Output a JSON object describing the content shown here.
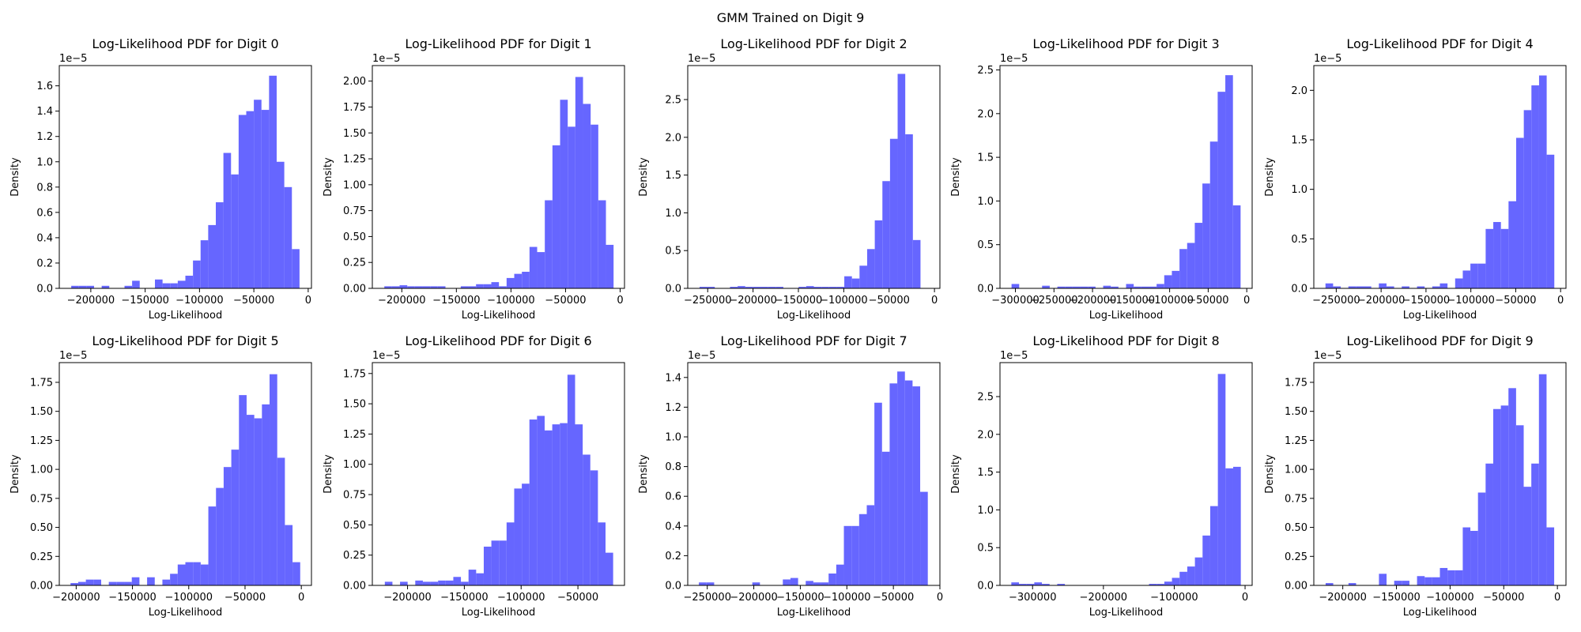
{
  "title": "GMM Trained on Digit 9",
  "chart_data": [
    {
      "type": "histogram",
      "title": "Log-Likelihood PDF for Digit 0",
      "xlabel": "Log-Likelihood",
      "ylabel": "Density",
      "y_offset_label": "1e−5",
      "color": "#6666ff",
      "bins": [
        -218000,
        -211000,
        -204000,
        -197000,
        -190000,
        -183000,
        -176000,
        -169000,
        -162000,
        -155000,
        -148000,
        -141000,
        -134000,
        -127000,
        -120000,
        -113000,
        -106000,
        -99000,
        -92000,
        -85000,
        -78000,
        -71000,
        -64000,
        -57000,
        -50000,
        -43000,
        -36000,
        -29000,
        -22000,
        -15000,
        -8000
      ],
      "values": [
        0.02,
        0.02,
        0.02,
        0,
        0.02,
        0,
        0,
        0.02,
        0.06,
        0,
        0,
        0.07,
        0.04,
        0.04,
        0.06,
        0.1,
        0.22,
        0.38,
        0.5,
        0.68,
        1.07,
        0.9,
        1.37,
        1.4,
        1.49,
        1.41,
        1.68,
        1.0,
        0.8,
        0.31
      ],
      "xlim": [
        -229000,
        3000
      ],
      "ylim": [
        0,
        1.76
      ],
      "xticks": [
        {
          "value": -200000,
          "label": "−200000"
        },
        {
          "value": -150000,
          "label": "−150000"
        },
        {
          "value": -100000,
          "label": "−100000"
        },
        {
          "value": -50000,
          "label": "−50000"
        },
        0
      ],
      "yticks": [
        {
          "value": 0,
          "label": "0.0"
        },
        0.2,
        0.4,
        0.6,
        0.8,
        {
          "value": 1,
          "label": "1.0"
        },
        1.2,
        1.4,
        1.6
      ]
    },
    {
      "type": "histogram",
      "title": "Log-Likelihood PDF for Digit 1",
      "xlabel": "Log-Likelihood",
      "ylabel": "Density",
      "y_offset_label": "1e−5",
      "color": "#6666ff",
      "bins": [
        -216000,
        -209000,
        -202000,
        -195000,
        -188000,
        -181000,
        -174000,
        -167000,
        -160000,
        -153000,
        -146000,
        -139000,
        -132000,
        -125000,
        -118000,
        -111000,
        -104000,
        -97000,
        -90000,
        -83000,
        -76000,
        -69000,
        -62000,
        -55000,
        -48000,
        -41000,
        -34000,
        -27000,
        -20000,
        -13000,
        -6000
      ],
      "values": [
        0.02,
        0.02,
        0.03,
        0.02,
        0.02,
        0.02,
        0.02,
        0.02,
        0,
        0,
        0.02,
        0.02,
        0.04,
        0.04,
        0.06,
        0.02,
        0.1,
        0.14,
        0.16,
        0.4,
        0.35,
        0.85,
        1.38,
        1.82,
        1.56,
        2.04,
        1.78,
        1.58,
        0.85,
        0.42
      ],
      "xlim": [
        -227000,
        4000
      ],
      "ylim": [
        0,
        2.15
      ],
      "xticks": [
        {
          "value": -200000,
          "label": "−200000"
        },
        {
          "value": -150000,
          "label": "−150000"
        },
        {
          "value": -100000,
          "label": "−100000"
        },
        {
          "value": -50000,
          "label": "−50000"
        },
        0
      ],
      "yticks": [
        {
          "value": 0,
          "label": "0.00"
        },
        0.25,
        {
          "value": 0.5,
          "label": "0.50"
        },
        0.75,
        {
          "value": 1,
          "label": "1.00"
        },
        1.25,
        {
          "value": 1.5,
          "label": "1.50"
        },
        1.75,
        {
          "value": 2,
          "label": "2.00"
        }
      ]
    },
    {
      "type": "histogram",
      "title": "Log-Likelihood PDF for Digit 2",
      "xlabel": "Log-Likelihood",
      "ylabel": "Density",
      "y_offset_label": "1e−5",
      "color": "#6666ff",
      "bins": [
        -259000,
        -250600,
        -242200,
        -233800,
        -225400,
        -217000,
        -208600,
        -200200,
        -191800,
        -183400,
        -175000,
        -166600,
        -158200,
        -149800,
        -141400,
        -133000,
        -124600,
        -116200,
        -107800,
        -99400,
        -91000,
        -82600,
        -74200,
        -65800,
        -57400,
        -49000,
        -40600,
        -32200,
        -23800,
        -15400,
        -7000
      ],
      "values": [
        0.02,
        0.02,
        0,
        0,
        0.02,
        0.03,
        0.02,
        0.02,
        0.02,
        0.02,
        0.02,
        0,
        0,
        0.02,
        0.03,
        0.02,
        0.02,
        0.02,
        0.02,
        0.16,
        0.13,
        0.3,
        0.52,
        0.9,
        1.42,
        1.98,
        2.84,
        2.04,
        0.64,
        0
      ],
      "xlim": [
        -272000,
        6000
      ],
      "ylim": [
        0,
        2.95
      ],
      "xticks": [
        {
          "value": -250000,
          "label": "−250000"
        },
        {
          "value": -200000,
          "label": "−200000"
        },
        {
          "value": -150000,
          "label": "−150000"
        },
        {
          "value": -100000,
          "label": "−100000"
        },
        {
          "value": -50000,
          "label": "−50000"
        },
        0
      ],
      "yticks": [
        {
          "value": 0,
          "label": "0.0"
        },
        0.5,
        {
          "value": 1,
          "label": "1.0"
        },
        1.5,
        {
          "value": 2,
          "label": "2.0"
        },
        2.5
      ]
    },
    {
      "type": "histogram",
      "title": "Log-Likelihood PDF for Digit 3",
      "xlabel": "Log-Likelihood",
      "ylabel": "Density",
      "y_offset_label": "1e−5",
      "color": "#6666ff",
      "bins": [
        -305000,
        -295100,
        -285200,
        -275300,
        -265400,
        -255500,
        -245600,
        -235700,
        -225800,
        -215900,
        -206000,
        -196100,
        -186200,
        -176300,
        -166400,
        -156500,
        -146600,
        -136700,
        -126800,
        -116900,
        -107000,
        -97100,
        -87200,
        -77300,
        -67400,
        -57500,
        -47600,
        -37700,
        -27800,
        -17900,
        -8000
      ],
      "values": [
        0.05,
        0,
        0,
        0,
        0.03,
        0,
        0.02,
        0.02,
        0.02,
        0.02,
        0.02,
        0,
        0.03,
        0.02,
        0,
        0.05,
        0.02,
        0.02,
        0.02,
        0.05,
        0.15,
        0.2,
        0.45,
        0.52,
        0.75,
        1.2,
        1.68,
        2.25,
        2.44,
        0.95
      ],
      "xlim": [
        -320000,
        7000
      ],
      "ylim": [
        0,
        2.55
      ],
      "xticks": [
        {
          "value": -300000,
          "label": "−300000"
        },
        {
          "value": -250000,
          "label": "−250000"
        },
        {
          "value": -200000,
          "label": "−200000"
        },
        {
          "value": -150000,
          "label": "−150000"
        },
        {
          "value": -100000,
          "label": "−100000"
        },
        {
          "value": -50000,
          "label": "−50000"
        },
        0
      ],
      "yticks": [
        {
          "value": 0,
          "label": "0.0"
        },
        0.5,
        {
          "value": 1,
          "label": "1.0"
        },
        1.5,
        {
          "value": 2,
          "label": "2.0"
        },
        2.5
      ]
    },
    {
      "type": "histogram",
      "title": "Log-Likelihood PDF for Digit 4",
      "xlabel": "Log-Likelihood",
      "ylabel": "Density",
      "y_offset_label": "1e−5",
      "color": "#6666ff",
      "bins": [
        -262000,
        -253500,
        -245000,
        -236500,
        -228000,
        -219500,
        -211000,
        -202500,
        -194000,
        -185500,
        -177000,
        -168500,
        -160000,
        -151500,
        -143000,
        -134500,
        -126000,
        -117500,
        -109000,
        -100500,
        -92000,
        -83500,
        -75000,
        -66500,
        -58000,
        -49500,
        -41000,
        -32500,
        -24000,
        -15500,
        -7000
      ],
      "values": [
        0.05,
        0.02,
        0,
        0.02,
        0.02,
        0.02,
        0,
        0.05,
        0.02,
        0,
        0.02,
        0,
        0.02,
        0,
        0.02,
        0.05,
        0,
        0.1,
        0.18,
        0.25,
        0.25,
        0.6,
        0.67,
        0.6,
        0.88,
        1.52,
        1.8,
        2.05,
        2.15,
        1.35
      ],
      "xlim": [
        -275000,
        6000
      ],
      "ylim": [
        0,
        2.25
      ],
      "xticks": [
        {
          "value": -250000,
          "label": "−250000"
        },
        {
          "value": -200000,
          "label": "−200000"
        },
        {
          "value": -150000,
          "label": "−150000"
        },
        {
          "value": -100000,
          "label": "−100000"
        },
        {
          "value": -50000,
          "label": "−50000"
        },
        0
      ],
      "yticks": [
        {
          "value": 0,
          "label": "0.0"
        },
        0.5,
        {
          "value": 1,
          "label": "1.0"
        },
        1.5,
        {
          "value": 2,
          "label": "2.0"
        }
      ]
    },
    {
      "type": "histogram",
      "title": "Log-Likelihood PDF for Digit 5",
      "xlabel": "Log-Likelihood",
      "ylabel": "Density",
      "y_offset_label": "1e−5",
      "color": "#6666ff",
      "bins": [
        -205000,
        -198200,
        -191400,
        -184600,
        -177800,
        -171000,
        -164200,
        -157400,
        -150600,
        -143800,
        -137000,
        -130200,
        -123400,
        -116600,
        -109800,
        -103000,
        -96200,
        -89400,
        -82600,
        -75800,
        -69000,
        -62200,
        -55400,
        -48600,
        -41800,
        -35000,
        -28200,
        -21400,
        -14600,
        -7800,
        -1000
      ],
      "values": [
        0.02,
        0.03,
        0.05,
        0.05,
        0,
        0.03,
        0.03,
        0.03,
        0.07,
        0,
        0.07,
        0,
        0.05,
        0.1,
        0.18,
        0.2,
        0.2,
        0.18,
        0.68,
        0.84,
        1.02,
        1.17,
        1.64,
        1.47,
        1.44,
        1.56,
        1.82,
        1.1,
        0.52,
        0.2
      ],
      "xlim": [
        -215000,
        9000
      ],
      "ylim": [
        0,
        1.92
      ],
      "xticks": [
        {
          "value": -200000,
          "label": "−200000"
        },
        {
          "value": -150000,
          "label": "−150000"
        },
        {
          "value": -100000,
          "label": "−100000"
        },
        {
          "value": -50000,
          "label": "−50000"
        },
        0
      ],
      "yticks": [
        {
          "value": 0,
          "label": "0.00"
        },
        0.25,
        {
          "value": 0.5,
          "label": "0.50"
        },
        0.75,
        {
          "value": 1,
          "label": "1.00"
        },
        1.25,
        {
          "value": 1.5,
          "label": "1.50"
        },
        1.75
      ]
    },
    {
      "type": "histogram",
      "title": "Log-Likelihood PDF for Digit 6",
      "xlabel": "Log-Likelihood",
      "ylabel": "Density",
      "y_offset_label": "1e−5",
      "color": "#6666ff",
      "bins": [
        -220000,
        -213300,
        -206600,
        -199900,
        -193200,
        -186500,
        -179800,
        -173100,
        -166400,
        -159700,
        -153000,
        -146300,
        -139600,
        -132900,
        -126200,
        -119500,
        -112800,
        -106100,
        -99400,
        -92700,
        -86000,
        -79300,
        -72600,
        -65900,
        -59200,
        -52500,
        -45800,
        -39100,
        -32400,
        -25700,
        -19000
      ],
      "values": [
        0.03,
        0,
        0.03,
        0,
        0.04,
        0.03,
        0.03,
        0.04,
        0.04,
        0.07,
        0.03,
        0.13,
        0.1,
        0.32,
        0.37,
        0.37,
        0.52,
        0.8,
        0.84,
        1.37,
        1.4,
        1.28,
        1.33,
        1.34,
        1.74,
        1.33,
        1.08,
        0.95,
        0.52,
        0.27
      ],
      "xlim": [
        -231000,
        -9000
      ],
      "ylim": [
        0,
        1.84
      ],
      "xticks": [
        {
          "value": -200000,
          "label": "−200000"
        },
        {
          "value": -150000,
          "label": "−150000"
        },
        {
          "value": -100000,
          "label": "−100000"
        },
        {
          "value": -50000,
          "label": "−50000"
        }
      ],
      "yticks": [
        {
          "value": 0,
          "label": "0.00"
        },
        0.25,
        {
          "value": 0.5,
          "label": "0.50"
        },
        0.75,
        {
          "value": 1,
          "label": "1.00"
        },
        1.25,
        {
          "value": 1.5,
          "label": "1.50"
        },
        1.75
      ]
    },
    {
      "type": "histogram",
      "title": "Log-Likelihood PDF for Digit 7",
      "xlabel": "Log-Likelihood",
      "ylabel": "Density",
      "y_offset_label": "1e−5",
      "color": "#6666ff",
      "bins": [
        -259000,
        -250800,
        -242600,
        -234400,
        -226200,
        -218000,
        -209800,
        -201600,
        -193400,
        -185200,
        -177000,
        -168800,
        -160600,
        -152400,
        -144200,
        -136000,
        -127800,
        -119600,
        -111400,
        -103200,
        -95000,
        -86800,
        -78600,
        -70400,
        -62200,
        -54000,
        -45800,
        -37600,
        -29400,
        -21200,
        -13000
      ],
      "values": [
        0.02,
        0.02,
        0,
        0,
        0,
        0,
        0,
        0.02,
        0,
        0,
        0,
        0.04,
        0.05,
        0,
        0.03,
        0.02,
        0.02,
        0.08,
        0.14,
        0.4,
        0.4,
        0.48,
        0.54,
        1.23,
        0.9,
        1.36,
        1.44,
        1.38,
        1.34,
        0.63
      ],
      "xlim": [
        -271000,
        0
      ],
      "ylim": [
        0,
        1.5
      ],
      "xticks": [
        {
          "value": -250000,
          "label": "−250000"
        },
        {
          "value": -200000,
          "label": "−200000"
        },
        {
          "value": -150000,
          "label": "−150000"
        },
        {
          "value": -100000,
          "label": "−100000"
        },
        {
          "value": -50000,
          "label": "−50000"
        },
        0
      ],
      "yticks": [
        {
          "value": 0,
          "label": "0.0"
        },
        0.2,
        0.4,
        0.6,
        0.8,
        {
          "value": 1,
          "label": "1.0"
        },
        1.2,
        1.4
      ]
    },
    {
      "type": "histogram",
      "title": "Log-Likelihood PDF for Digit 8",
      "xlabel": "Log-Likelihood",
      "ylabel": "Density",
      "y_offset_label": "1e−5",
      "color": "#6666ff",
      "bins": [
        -330000,
        -319200,
        -308400,
        -297600,
        -286800,
        -276000,
        -265200,
        -254400,
        -243600,
        -232800,
        -222000,
        -211200,
        -200400,
        -189600,
        -178800,
        -168000,
        -157200,
        -146400,
        -135600,
        -124800,
        -114000,
        -103200,
        -92400,
        -81600,
        -70800,
        -60000,
        -49200,
        -38400,
        -27600,
        -16800,
        -6000
      ],
      "values": [
        0.04,
        0.02,
        0.02,
        0.04,
        0.02,
        0,
        0.02,
        0,
        0,
        0,
        0,
        0,
        0,
        0,
        0,
        0,
        0,
        0,
        0.02,
        0.02,
        0.05,
        0.1,
        0.18,
        0.25,
        0.37,
        0.66,
        1.05,
        2.8,
        1.55,
        1.57
      ],
      "xlim": [
        -346000,
        10000
      ],
      "ylim": [
        0,
        2.95
      ],
      "xticks": [
        {
          "value": -300000,
          "label": "−300000"
        },
        {
          "value": -200000,
          "label": "−200000"
        },
        {
          "value": -100000,
          "label": "−100000"
        },
        0
      ],
      "yticks": [
        {
          "value": 0,
          "label": "0.0"
        },
        0.5,
        {
          "value": 1,
          "label": "1.0"
        },
        1.5,
        {
          "value": 2,
          "label": "2.0"
        },
        2.5
      ]
    },
    {
      "type": "histogram",
      "title": "Log-Likelihood PDF for Digit 9",
      "xlabel": "Log-Likelihood",
      "ylabel": "Density",
      "y_offset_label": "1e−5",
      "color": "#6666ff",
      "bins": [
        -216000,
        -208900,
        -201800,
        -194700,
        -187600,
        -180500,
        -173400,
        -166300,
        -159200,
        -152100,
        -145000,
        -137900,
        -130800,
        -123700,
        -116600,
        -109500,
        -102400,
        -95300,
        -88200,
        -81100,
        -74000,
        -66900,
        -59800,
        -52700,
        -45600,
        -38500,
        -31400,
        -24300,
        -17200,
        -10100,
        -3000
      ],
      "values": [
        0.02,
        0,
        0,
        0.02,
        0,
        0,
        0,
        0.1,
        0,
        0.04,
        0.04,
        0,
        0.08,
        0.07,
        0.07,
        0.15,
        0.13,
        0.13,
        0.5,
        0.47,
        0.8,
        1.05,
        1.52,
        1.55,
        1.7,
        1.38,
        0.85,
        1.05,
        1.82,
        0.5
      ],
      "xlim": [
        -227000,
        8000
      ],
      "ylim": [
        0,
        1.92
      ],
      "xticks": [
        {
          "value": -200000,
          "label": "−200000"
        },
        {
          "value": -150000,
          "label": "−150000"
        },
        {
          "value": -100000,
          "label": "−100000"
        },
        {
          "value": -50000,
          "label": "−50000"
        },
        0
      ],
      "yticks": [
        {
          "value": 0,
          "label": "0.00"
        },
        0.25,
        {
          "value": 0.5,
          "label": "0.50"
        },
        0.75,
        {
          "value": 1,
          "label": "1.00"
        },
        1.25,
        {
          "value": 1.5,
          "label": "1.50"
        },
        1.75
      ]
    }
  ]
}
